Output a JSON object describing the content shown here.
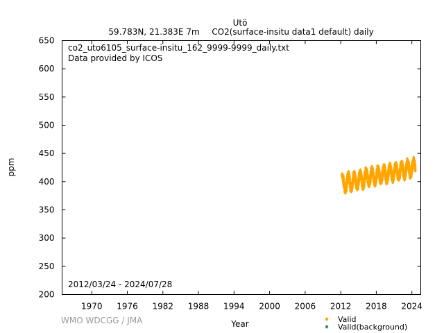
{
  "chart_data": {
    "type": "scatter",
    "title": "Utö",
    "subtitle_location": "59.783N, 21.383E 7m",
    "subtitle_series": "CO2(surface-insitu data1 default) daily",
    "xlabel": "Year",
    "ylabel": "ppm",
    "xlim": [
      1965,
      2025.5
    ],
    "ylim": [
      200,
      650
    ],
    "xticks": [
      1970,
      1976,
      1982,
      1988,
      1994,
      2000,
      2006,
      2012,
      2018,
      2024
    ],
    "yticks": [
      200,
      250,
      300,
      350,
      400,
      450,
      500,
      550,
      600,
      650
    ],
    "grid": false,
    "legend_position": "bottom-right",
    "annotations": {
      "filename": "co2_uto6105_surface-insitu_162_9999-9999_daily.txt",
      "provider": "Data provided by ICOS",
      "period": "2012/03/24 - 2024/07/28",
      "credit": "WMO WDCGG / JMA"
    },
    "series": [
      {
        "name": "Valid",
        "color": "#ffa500",
        "marker": "diamond",
        "start_year": 2012.23,
        "end_year": 2024.57,
        "trend": [
          [
            2012.5,
            397
          ],
          [
            2013.5,
            399.5
          ],
          [
            2014.5,
            401.5
          ],
          [
            2015.5,
            404
          ],
          [
            2016.5,
            407
          ],
          [
            2017.5,
            409
          ],
          [
            2018.5,
            411.5
          ],
          [
            2019.5,
            413.5
          ],
          [
            2020.5,
            416
          ],
          [
            2021.5,
            418
          ],
          [
            2022.5,
            420.5
          ],
          [
            2023.5,
            423
          ],
          [
            2024.5,
            425
          ]
        ],
        "seasonal_amplitude": 13,
        "scatter_ppm": 5
      },
      {
        "name": "Valid(background)",
        "color": "#2e8b57",
        "marker": "diamond",
        "points": []
      }
    ]
  }
}
